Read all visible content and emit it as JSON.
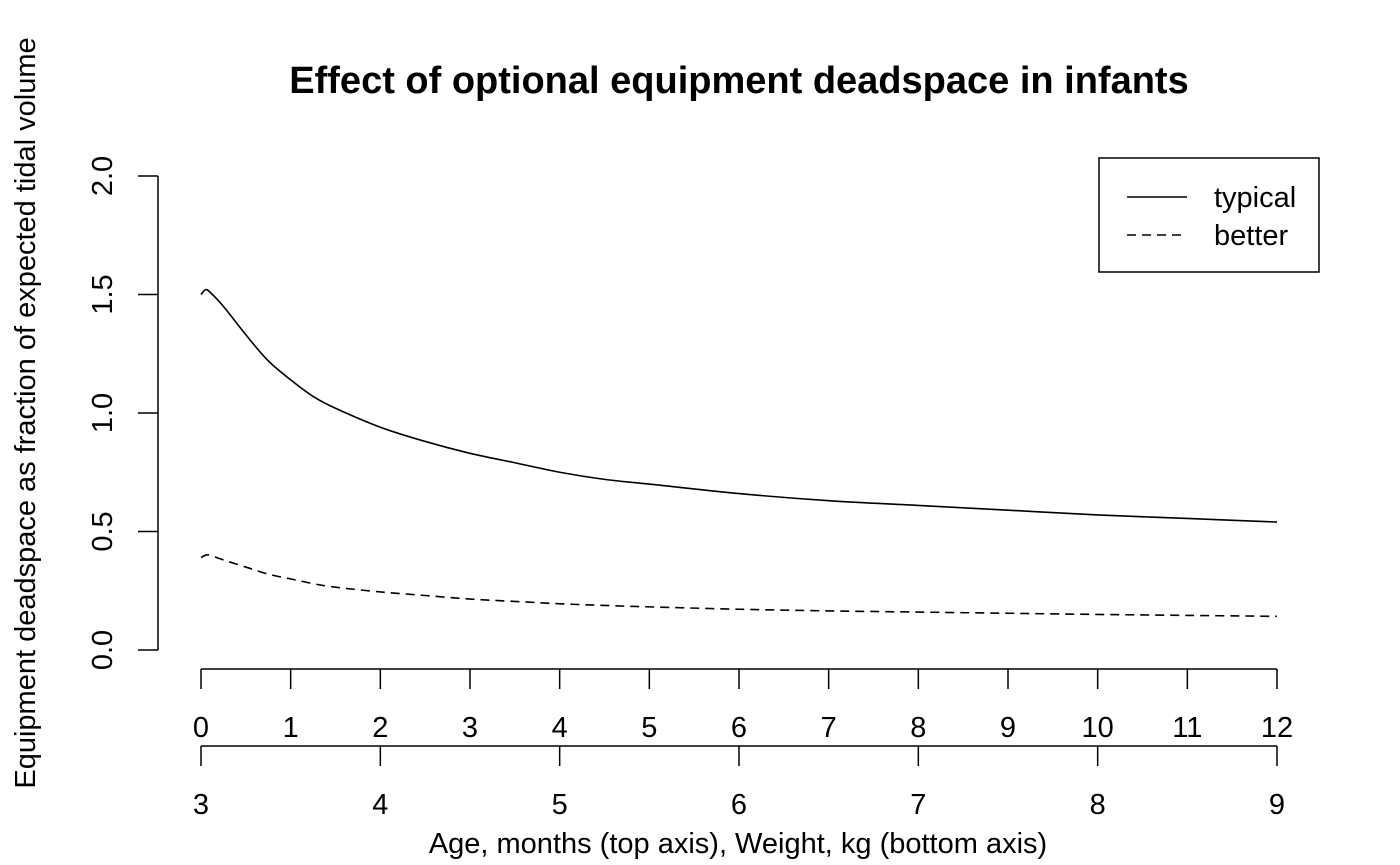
{
  "chart_data": {
    "type": "line",
    "title": "Effect of optional equipment deadspace in infants",
    "xlabel": "Age, months (top axis), Weight, kg (bottom axis)",
    "ylabel": "Equipment deadspace as fraction of expected tidal volume",
    "ylim": [
      0,
      2
    ],
    "yticks": [
      0.0,
      0.5,
      1.0,
      1.5,
      2.0
    ],
    "ytick_labels": [
      "0.0",
      "0.5",
      "1.0",
      "1.5",
      "2.0"
    ],
    "age_axis": {
      "range": [
        0,
        12
      ],
      "ticks": [
        0,
        1,
        2,
        3,
        4,
        5,
        6,
        7,
        8,
        9,
        10,
        11,
        12
      ],
      "tick_labels": [
        "0",
        "1",
        "2",
        "3",
        "4",
        "5",
        "6",
        "7",
        "8",
        "9",
        "10",
        "11",
        "12"
      ]
    },
    "weight_axis": {
      "range": [
        3,
        9
      ],
      "ticks": [
        3,
        4,
        5,
        6,
        7,
        8,
        9
      ],
      "tick_labels": [
        "3",
        "4",
        "5",
        "6",
        "7",
        "8",
        "9"
      ]
    },
    "x_age_months": [
      0,
      0.05,
      0.1,
      0.25,
      0.5,
      0.75,
      1,
      1.25,
      1.5,
      2,
      2.5,
      3,
      3.5,
      4,
      4.5,
      5,
      6,
      7,
      8,
      9,
      10,
      11,
      12
    ],
    "series": [
      {
        "name": "typical",
        "line_style": "solid",
        "values": [
          1.5,
          1.52,
          1.51,
          1.45,
          1.33,
          1.22,
          1.14,
          1.07,
          1.02,
          0.94,
          0.88,
          0.83,
          0.79,
          0.75,
          0.72,
          0.7,
          0.66,
          0.63,
          0.61,
          0.59,
          0.57,
          0.555,
          0.54
        ]
      },
      {
        "name": "better",
        "line_style": "dashed",
        "values": [
          0.39,
          0.4,
          0.4,
          0.38,
          0.35,
          0.32,
          0.3,
          0.28,
          0.265,
          0.245,
          0.23,
          0.215,
          0.205,
          0.195,
          0.188,
          0.182,
          0.172,
          0.165,
          0.16,
          0.155,
          0.15,
          0.146,
          0.142
        ]
      }
    ],
    "legend": {
      "placement": "top-right",
      "entries": [
        {
          "label": "typical",
          "line_style": "solid"
        },
        {
          "label": "better",
          "line_style": "dashed"
        }
      ]
    },
    "grid": false,
    "colors": {
      "line": "#000000",
      "background": "#ffffff"
    }
  }
}
